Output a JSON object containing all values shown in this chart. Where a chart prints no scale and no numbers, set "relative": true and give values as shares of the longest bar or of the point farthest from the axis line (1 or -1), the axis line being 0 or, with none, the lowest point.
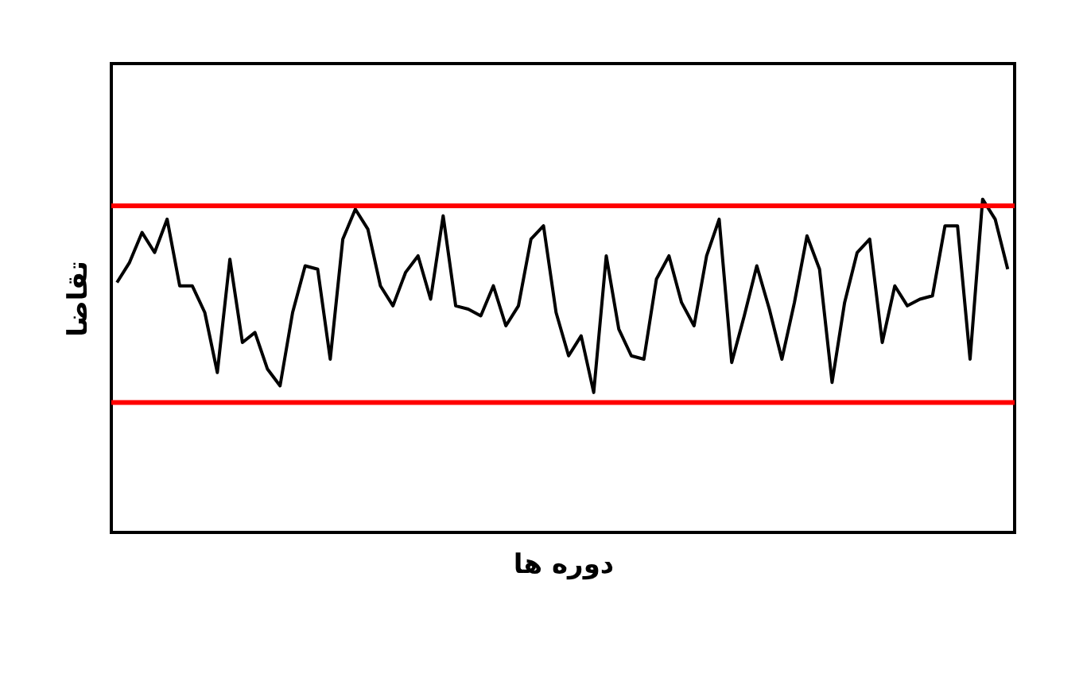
{
  "chart_data": {
    "type": "line",
    "relative": true,
    "xlabel": "دوره ها",
    "ylabel": "تقاضا",
    "categories": [
      null,
      null,
      null,
      null,
      null,
      null,
      null,
      null,
      null,
      null,
      null,
      null,
      null,
      null,
      null,
      null,
      null,
      null,
      null,
      null,
      null,
      null,
      null,
      null,
      null,
      null,
      null,
      null,
      null,
      null,
      null,
      null,
      null,
      null,
      null,
      null,
      null,
      null,
      null,
      null,
      null,
      null,
      null,
      null,
      null,
      null,
      null,
      null,
      null,
      null,
      null,
      null,
      null,
      null,
      null,
      null,
      null,
      null,
      null,
      null,
      null,
      null,
      null,
      null,
      null,
      null,
      null,
      null,
      null,
      null,
      null,
      null
    ],
    "series": [
      {
        "color": "#000000",
        "values": [
          0.75,
          0.81,
          0.9,
          0.84,
          0.94,
          0.74,
          0.74,
          0.66,
          0.48,
          0.82,
          0.57,
          0.6,
          0.49,
          0.44,
          0.66,
          0.8,
          0.79,
          0.52,
          0.88,
          0.97,
          0.91,
          0.74,
          0.68,
          0.78,
          0.83,
          0.7,
          0.95,
          0.68,
          0.67,
          0.65,
          0.74,
          0.62,
          0.68,
          0.88,
          0.92,
          0.66,
          0.53,
          0.59,
          0.42,
          0.83,
          0.61,
          0.53,
          0.52,
          0.76,
          0.83,
          0.69,
          0.62,
          0.83,
          0.94,
          0.51,
          0.65,
          0.8,
          0.67,
          0.52,
          0.69,
          0.89,
          0.79,
          0.45,
          0.69,
          0.84,
          0.88,
          0.57,
          0.74,
          0.68,
          0.7,
          0.71,
          0.92,
          0.92,
          0.52,
          1.0,
          0.94,
          0.79
        ]
      }
    ],
    "ref_lines": [
      {
        "axis": "y",
        "value": 0.98,
        "color": "#ff0000"
      },
      {
        "axis": "y",
        "value": 0.39,
        "color": "#ff0000"
      }
    ],
    "grid": false,
    "marker": "none",
    "line_style": "solid"
  }
}
